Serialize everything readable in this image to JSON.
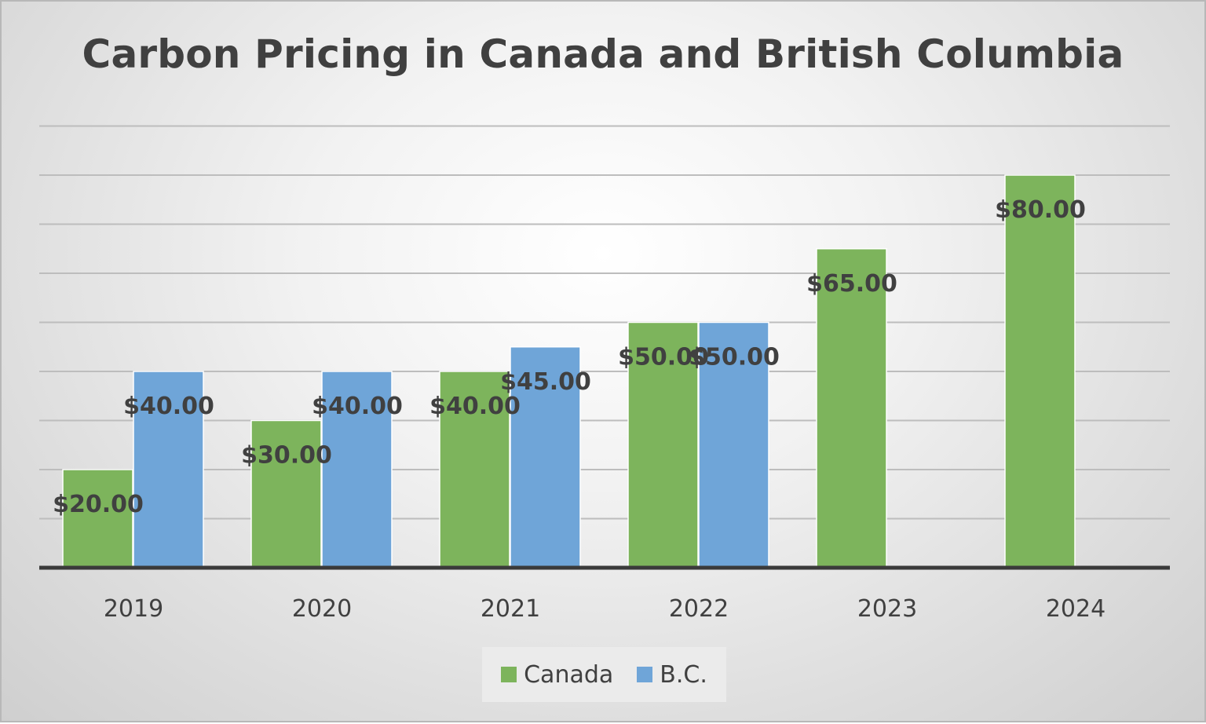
{
  "chart_data": {
    "type": "bar",
    "title": "Carbon Pricing in Canada and British Columbia",
    "categories": [
      "2019",
      "2020",
      "2021",
      "2022",
      "2023",
      "2024"
    ],
    "series": [
      {
        "name": "Canada",
        "color": "#7db45c",
        "values": [
          20,
          30,
          40,
          50,
          65,
          80
        ],
        "labels": [
          "$20.00",
          "$30.00",
          "$40.00",
          "$50.00",
          "$65.00",
          "$80.00"
        ]
      },
      {
        "name": "B.C.",
        "color": "#6fa5d8",
        "values": [
          40,
          40,
          45,
          50,
          null,
          null
        ],
        "labels": [
          "$40.00",
          "$40.00",
          "$45.00",
          "$50.00",
          "",
          ""
        ]
      }
    ],
    "xlabel": "",
    "ylabel": "",
    "ylim": [
      0,
      90
    ],
    "gridlines": true,
    "legend_position": "bottom"
  }
}
